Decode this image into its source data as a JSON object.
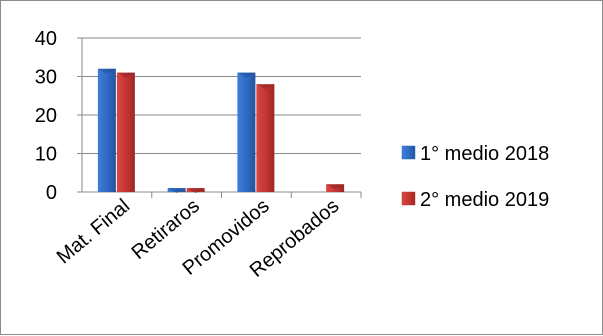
{
  "chart_data": {
    "type": "bar",
    "categories": [
      "Mat. Final",
      "Retiraros",
      "Promovidos",
      "Reprobados"
    ],
    "series": [
      {
        "name": "1° medio 2018",
        "values": [
          32,
          1,
          31,
          0
        ],
        "color": "#2f69c4"
      },
      {
        "name": "2° medio 2019",
        "values": [
          31,
          1,
          28,
          2
        ],
        "color": "#c33431"
      }
    ],
    "yticks": [
      "0",
      "10",
      "20",
      "30",
      "40"
    ],
    "ylim": [
      0,
      40
    ],
    "grid": true,
    "legend_position": "right",
    "bar_style": "3d-cylinder-like"
  }
}
